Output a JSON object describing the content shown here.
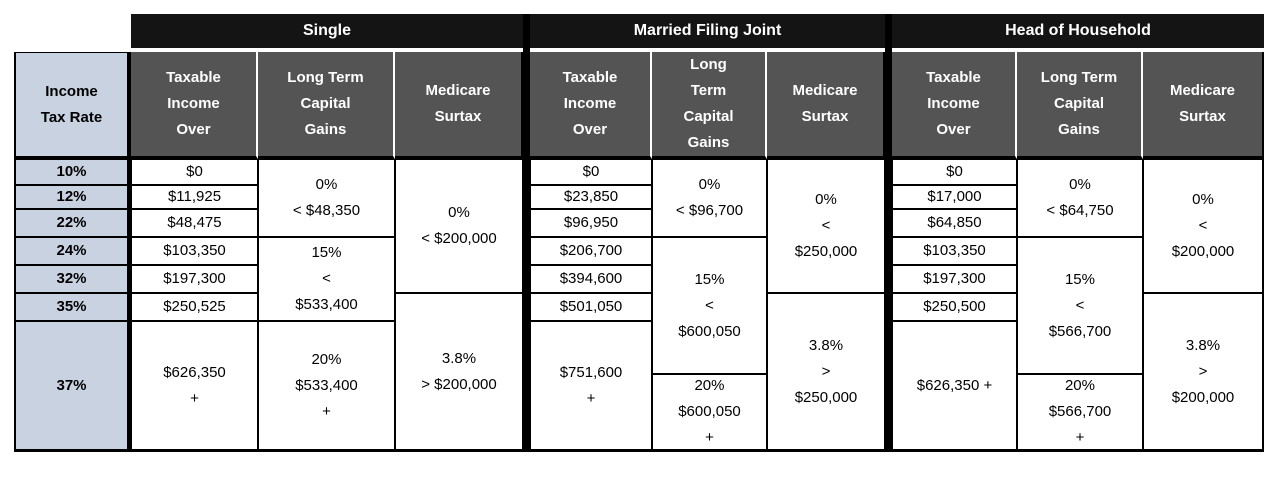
{
  "rate_header": "Income\nTax Rate",
  "rates": [
    "10%",
    "12%",
    "22%",
    "24%",
    "32%",
    "35%",
    "37%"
  ],
  "sections": {
    "single": {
      "title": "Single",
      "col_income": "Taxable\nIncome\nOver",
      "col_ltcg": "Long Term\nCapital\nGains",
      "col_medicare": "Medicare\nSurtax",
      "income": [
        "$0",
        "$11,925",
        "$48,475",
        "$103,350",
        "$197,300",
        "$250,525",
        "$626,350\n+"
      ],
      "ltcg0": "0%\n< $48,350",
      "ltcg15": "15%\n<\n$533,400",
      "ltcg20": "20%\n$533,400\n+",
      "med0": "0%\n< $200,000",
      "med38": "3.8%\n> $200,000"
    },
    "mfj": {
      "title": "Married Filing Joint",
      "col_income": "Taxable\nIncome\nOver",
      "col_ltcg": "Long\nTerm\nCapital\nGains",
      "col_medicare": "Medicare\nSurtax",
      "income": [
        "$0",
        "$23,850",
        "$96,950",
        "$206,700",
        "$394,600",
        "$501,050",
        "$751,600\n+"
      ],
      "ltcg0": "0%\n< $96,700",
      "ltcg15": "15%\n<\n$600,050",
      "ltcg20": "20%\n$600,050\n+",
      "med0": "0%\n<\n$250,000",
      "med38": "3.8%\n>\n$250,000"
    },
    "hoh": {
      "title": "Head of Household",
      "col_income": "Taxable\nIncome\nOver",
      "col_ltcg": "Long Term\nCapital\nGains",
      "col_medicare": "Medicare\nSurtax",
      "income": [
        "$0",
        "$17,000",
        "$64,850",
        "$103,350",
        "$197,300",
        "$250,500",
        "$626,350 +"
      ],
      "ltcg0": "0%\n< $64,750",
      "ltcg15": "15%\n<\n$566,700",
      "ltcg20": "20%\n$566,700\n+",
      "med0": "0%\n<\n$200,000",
      "med38": "3.8%\n>\n$200,000"
    }
  },
  "colors": {
    "header_black": "#141414",
    "subheader_gray": "#545454",
    "rate_blue": "#c9d2e1",
    "border": "#000000",
    "header_text": "#ffffff"
  },
  "chart_data": {
    "type": "table",
    "row_header": "Income Tax Rate",
    "columns": [
      "Income Tax Rate",
      "Single: Taxable Income Over",
      "Single: Long Term Capital Gains",
      "Single: Medicare Surtax",
      "Married Filing Joint: Taxable Income Over",
      "Married Filing Joint: Long Term Capital Gains",
      "Married Filing Joint: Medicare Surtax",
      "Head of Household: Taxable Income Over",
      "Head of Household: Long Term Capital Gains",
      "Head of Household: Medicare Surtax"
    ],
    "rows": [
      [
        "10%",
        "$0",
        "0% < $48,350",
        "0% < $200,000",
        "$0",
        "0% < $96,700",
        "0% < $250,000",
        "$0",
        "0% < $64,750",
        "0% < $200,000"
      ],
      [
        "12%",
        "$11,925",
        "0% < $48,350",
        "0% < $200,000",
        "$23,850",
        "0% < $96,700",
        "0% < $250,000",
        "$17,000",
        "0% < $64,750",
        "0% < $200,000"
      ],
      [
        "22%",
        "$48,475",
        "0% < $48,350",
        "0% < $200,000",
        "$96,950",
        "0% < $96,700",
        "0% < $250,000",
        "$64,850",
        "0% < $64,750",
        "0% < $200,000"
      ],
      [
        "24%",
        "$103,350",
        "15% < $533,400",
        "0% < $200,000",
        "$206,700",
        "15% < $600,050",
        "0% < $250,000",
        "$103,350",
        "15% < $566,700",
        "0% < $200,000"
      ],
      [
        "32%",
        "$197,300",
        "15% < $533,400",
        "0% < $200,000",
        "$394,600",
        "15% < $600,050",
        "0% < $250,000",
        "$197,300",
        "15% < $566,700",
        "0% < $200,000"
      ],
      [
        "35%",
        "$250,525",
        "15% < $533,400",
        "3.8% > $200,000",
        "$501,050",
        "15% < $600,050",
        "3.8% > $250,000",
        "$250,500",
        "15% < $566,700",
        "3.8% > $200,000"
      ],
      [
        "37%",
        "$626,350 +",
        "20% $533,400 +",
        "3.8% > $200,000",
        "$751,600 +",
        "20% $600,050 +",
        "3.8% > $250,000",
        "$626,350 +",
        "20% $566,700 +",
        "3.8% > $200,000"
      ]
    ]
  }
}
